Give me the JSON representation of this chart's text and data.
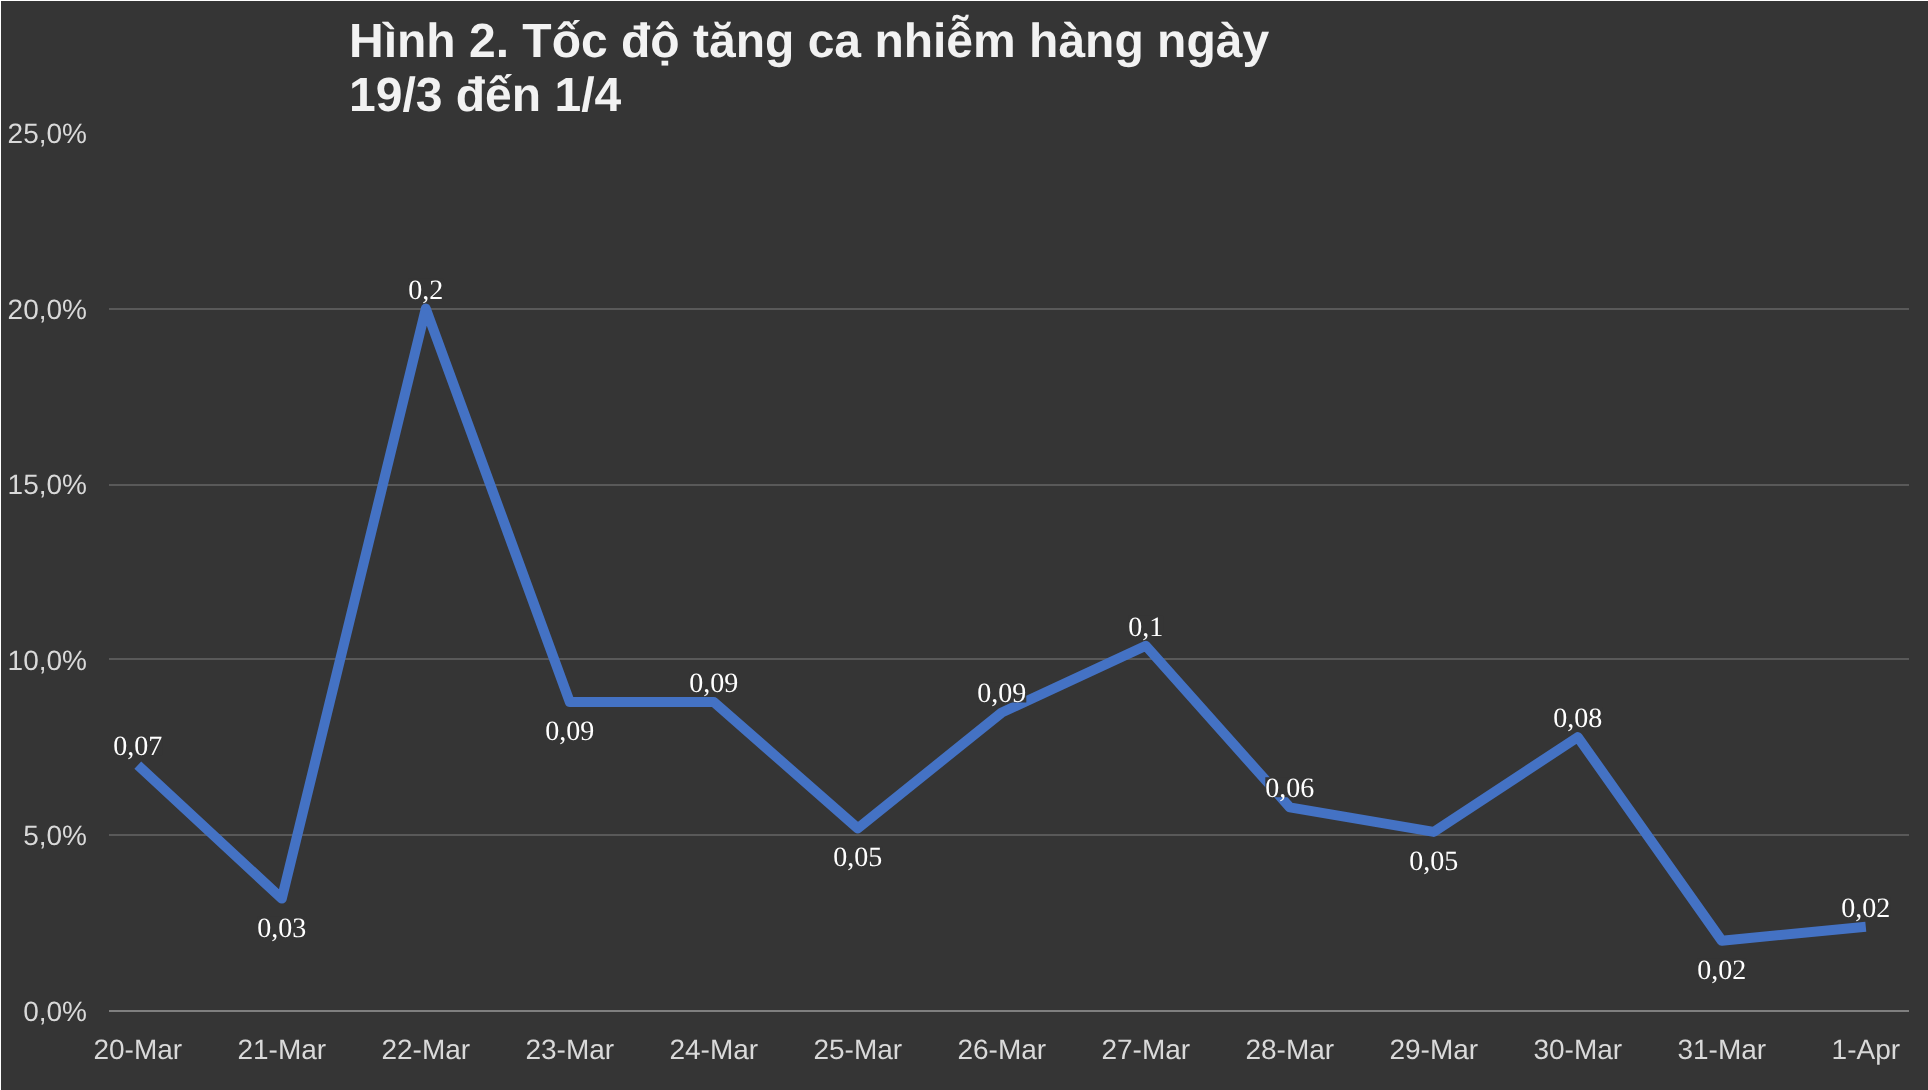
{
  "chart_data": {
    "type": "line",
    "title": "Hình 2. Tốc độ tăng ca nhiễm hàng ngày\n19/3 đến 1/4",
    "categories": [
      "20-Mar",
      "21-Mar",
      "22-Mar",
      "23-Mar",
      "24-Mar",
      "25-Mar",
      "26-Mar",
      "27-Mar",
      "28-Mar",
      "29-Mar",
      "30-Mar",
      "31-Mar",
      "1-Apr"
    ],
    "series": [
      {
        "color": "#4472c4",
        "values": [
          0.07,
          0.032,
          0.2,
          0.088,
          0.088,
          0.052,
          0.085,
          0.104,
          0.058,
          0.051,
          0.078,
          0.02,
          0.024
        ],
        "value_labels": [
          "0,07",
          "0,03",
          "0,2",
          "0,09",
          "0,09",
          "0,05",
          "0,09",
          "0,1",
          "0,06",
          "0,05",
          "0,08",
          "0,02",
          "0,02"
        ]
      }
    ],
    "ylim": [
      0,
      0.25
    ],
    "yticks": [
      {
        "value": 0,
        "label": "0,0%"
      },
      {
        "value": 0.05,
        "label": "5,0%"
      },
      {
        "value": 0.1,
        "label": "10,0%"
      },
      {
        "value": 0.15,
        "label": "15,0%"
      },
      {
        "value": 0.2,
        "label": "20,0%"
      },
      {
        "value": 0.25,
        "label": "25,0%"
      }
    ],
    "grid": "y",
    "marker": "none",
    "line_style": "solid"
  }
}
